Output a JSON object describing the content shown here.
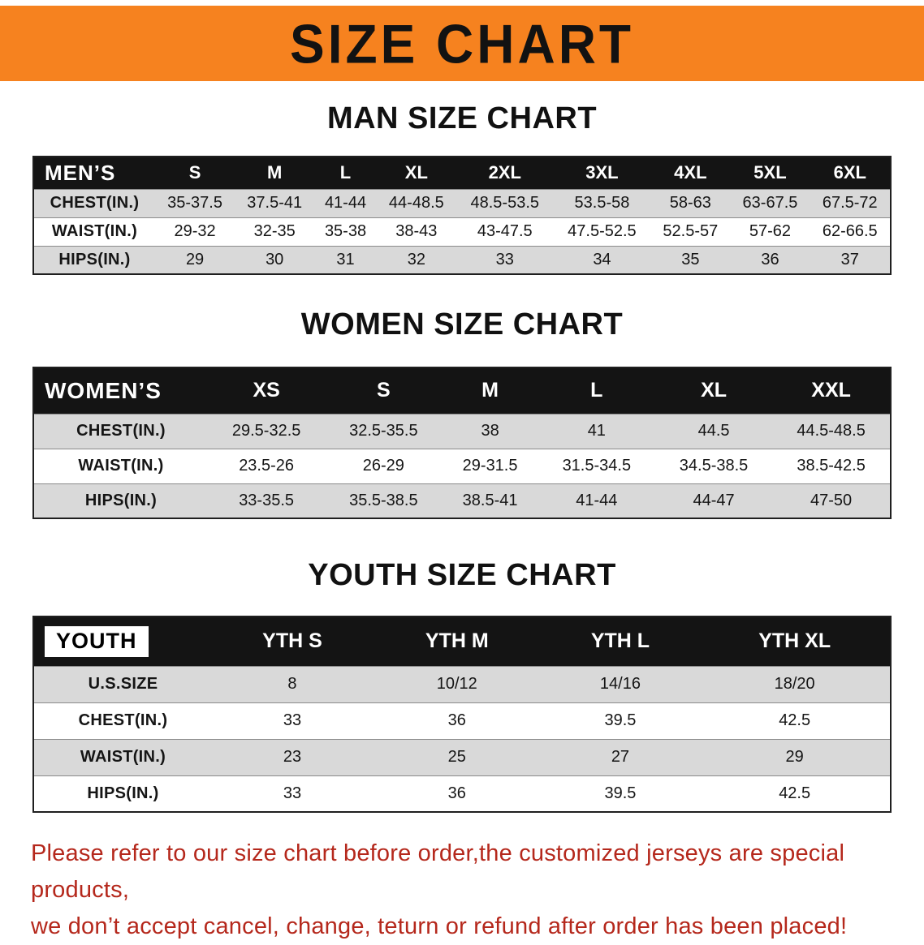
{
  "banner": {
    "title": "SIZE CHART",
    "bg_color": "#F6821F"
  },
  "sections": [
    {
      "heading": "MAN SIZE CHART",
      "corner_label": "MEN’S",
      "columns": [
        "S",
        "M",
        "L",
        "XL",
        "2XL",
        "3XL",
        "4XL",
        "5XL",
        "6XL"
      ],
      "rows": [
        {
          "label": "CHEST(IN.)",
          "values": [
            "35-37.5",
            "37.5-41",
            "41-44",
            "44-48.5",
            "48.5-53.5",
            "53.5-58",
            "58-63",
            "63-67.5",
            "67.5-72"
          ]
        },
        {
          "label": "WAIST(IN.)",
          "values": [
            "29-32",
            "32-35",
            "35-38",
            "38-43",
            "43-47.5",
            "47.5-52.5",
            "52.5-57",
            "57-62",
            "62-66.5"
          ]
        },
        {
          "label": "HIPS(IN.)",
          "values": [
            "29",
            "30",
            "31",
            "32",
            "33",
            "34",
            "35",
            "36",
            "37"
          ]
        }
      ]
    },
    {
      "heading": "WOMEN SIZE CHART",
      "corner_label": "WOMEN’S",
      "columns": [
        "XS",
        "S",
        "M",
        "L",
        "XL",
        "XXL"
      ],
      "rows": [
        {
          "label": "CHEST(IN.)",
          "values": [
            "29.5-32.5",
            "32.5-35.5",
            "38",
            "41",
            "44.5",
            "44.5-48.5"
          ]
        },
        {
          "label": "WAIST(IN.)",
          "values": [
            "23.5-26",
            "26-29",
            "29-31.5",
            "31.5-34.5",
            "34.5-38.5",
            "38.5-42.5"
          ]
        },
        {
          "label": "HIPS(IN.)",
          "values": [
            "33-35.5",
            "35.5-38.5",
            "38.5-41",
            "41-44",
            "44-47",
            "47-50"
          ]
        }
      ]
    },
    {
      "heading": "YOUTH SIZE CHART",
      "corner_label": "YOUTH",
      "columns": [
        "YTH S",
        "YTH M",
        "YTH L",
        "YTH XL"
      ],
      "rows": [
        {
          "label": "U.S.SIZE",
          "values": [
            "8",
            "10/12",
            "14/16",
            "18/20"
          ]
        },
        {
          "label": "CHEST(IN.)",
          "values": [
            "33",
            "36",
            "39.5",
            "42.5"
          ]
        },
        {
          "label": "WAIST(IN.)",
          "values": [
            "23",
            "25",
            "27",
            "29"
          ]
        },
        {
          "label": "HIPS(IN.)",
          "values": [
            "33",
            "36",
            "39.5",
            "42.5"
          ]
        }
      ]
    }
  ],
  "footer": {
    "text_color": "#b5281c",
    "lines": [
      "Please refer to our size chart before order,the customized jerseys are special products,",
      "we don’t accept cancel, change, teturn or refund after order has been placed!"
    ]
  }
}
